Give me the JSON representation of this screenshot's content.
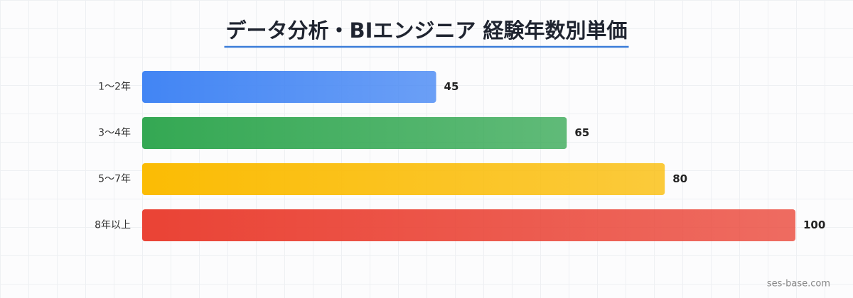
{
  "chart_data": {
    "type": "bar",
    "orientation": "horizontal",
    "title": "データ分析・BIエンジニア 経験年数別単価",
    "categories": [
      "1〜2年",
      "3〜4年",
      "5〜7年",
      "8年以上"
    ],
    "values": [
      45,
      65,
      80,
      100
    ],
    "colors": [
      "#4285f4",
      "#34a853",
      "#fbbc04",
      "#ea4335"
    ],
    "title_underline_color": "#3b7dd8",
    "source": "ses-base.com"
  }
}
